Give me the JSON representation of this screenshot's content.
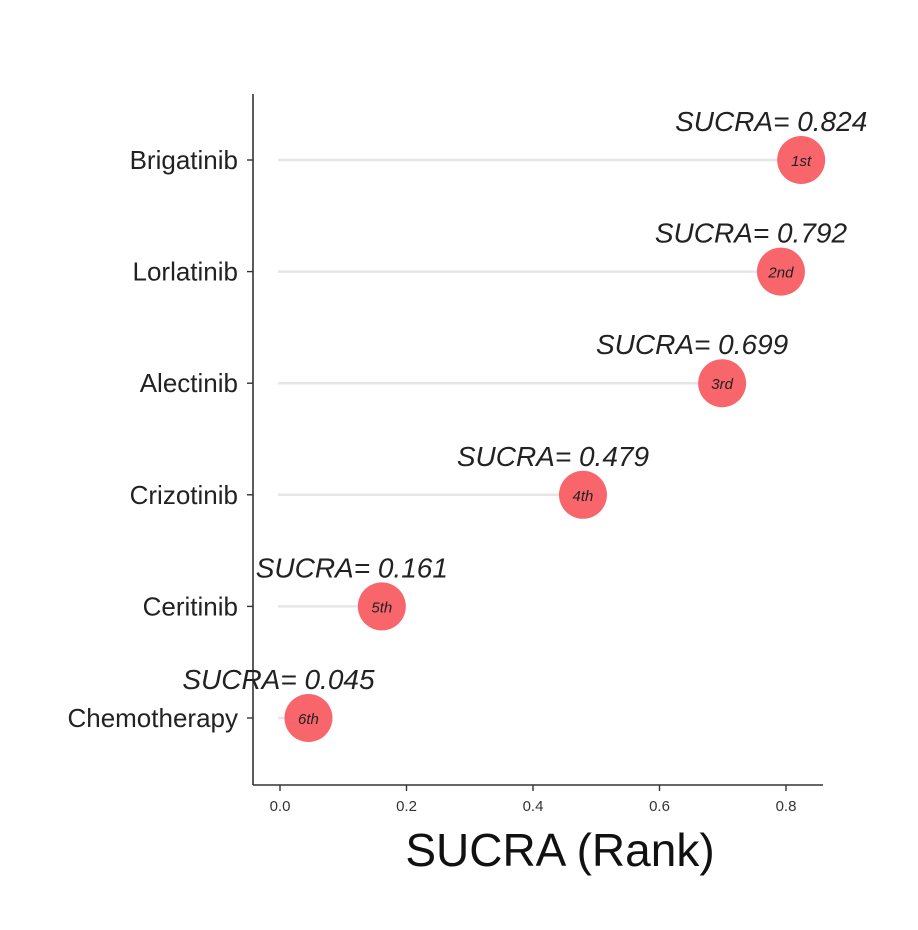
{
  "chart_data": {
    "type": "lollipop",
    "categories": [
      "Brigatinib",
      "Lorlatinib",
      "Alectinib",
      "Crizotinib",
      "Ceritinib",
      "Chemotherapy"
    ],
    "values": [
      0.824,
      0.792,
      0.699,
      0.479,
      0.161,
      0.045
    ],
    "annotations": [
      "SUCRA= 0.824",
      "SUCRA= 0.792",
      "SUCRA= 0.699",
      "SUCRA= 0.479",
      "SUCRA= 0.161",
      "SUCRA= 0.045"
    ],
    "ranks": [
      "1st",
      "2nd",
      "3rd",
      "4th",
      "5th",
      "6th"
    ],
    "xlabel": "SUCRA (Rank)",
    "ylabel": "",
    "xlim": [
      0,
      0.84
    ],
    "xticks": [
      0.0,
      0.2,
      0.4,
      0.6,
      0.8
    ],
    "xtick_labels": [
      "0.0",
      "0.2",
      "0.4",
      "0.6",
      "0.8"
    ],
    "grid": false,
    "colors": {
      "point": "#f8656a",
      "stem": "#e6e6e6",
      "axis": "#333333"
    }
  }
}
